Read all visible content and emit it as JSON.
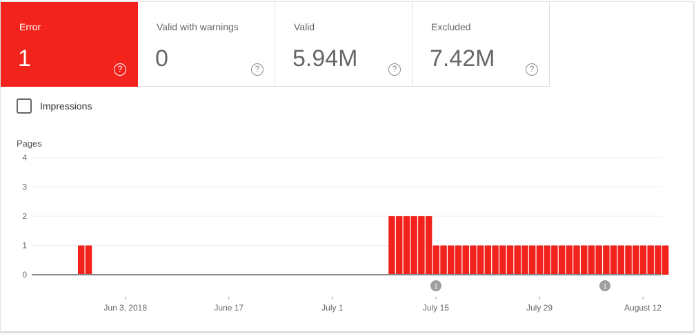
{
  "tiles": [
    {
      "label": "Error",
      "value": "1",
      "active": true
    },
    {
      "label": "Valid with warnings",
      "value": "0",
      "active": false
    },
    {
      "label": "Valid",
      "value": "5.94M",
      "active": false
    },
    {
      "label": "Excluded",
      "value": "7.42M",
      "active": false
    }
  ],
  "help_glyph": "?",
  "impressions": {
    "label": "Impressions",
    "checked": false
  },
  "colors": {
    "error": "#f2231d",
    "grid": "#eeeeee",
    "axis": "#888888",
    "annotation": "#9e9e9e"
  },
  "chart_data": {
    "type": "bar",
    "title": "",
    "xlabel": "",
    "ylabel": "Pages",
    "ylim": [
      0,
      4
    ],
    "yticks": [
      0,
      1,
      2,
      3,
      4
    ],
    "grid": true,
    "legend": "none",
    "xtick_labels": [
      "Jun 3, 2018",
      "June 17",
      "July 1",
      "July 15",
      "July 29",
      "August 12"
    ],
    "start_date": "2018-05-22",
    "categories_note": "daily from 2018-05-22 to 2018-08-15",
    "series": [
      {
        "name": "Error",
        "color": "#f2231d",
        "values": [
          0,
          0,
          0,
          0,
          0,
          0,
          1,
          1,
          0,
          0,
          0,
          0,
          0,
          0,
          0,
          0,
          0,
          0,
          0,
          0,
          0,
          0,
          0,
          0,
          0,
          0,
          0,
          0,
          0,
          0,
          0,
          0,
          0,
          0,
          0,
          0,
          0,
          0,
          0,
          0,
          0,
          0,
          0,
          0,
          0,
          0,
          0,
          0,
          2,
          2,
          2,
          2,
          2,
          2,
          1,
          1,
          1,
          1,
          1,
          1,
          1,
          1,
          1,
          1,
          1,
          1,
          1,
          1,
          1,
          1,
          1,
          1,
          1,
          1,
          1,
          1,
          1,
          1,
          1,
          1,
          1,
          1,
          1,
          1,
          1,
          1
        ]
      }
    ],
    "annotations": [
      {
        "label": "1",
        "date": "July 15"
      },
      {
        "label": "1",
        "date": "August 7"
      }
    ]
  }
}
